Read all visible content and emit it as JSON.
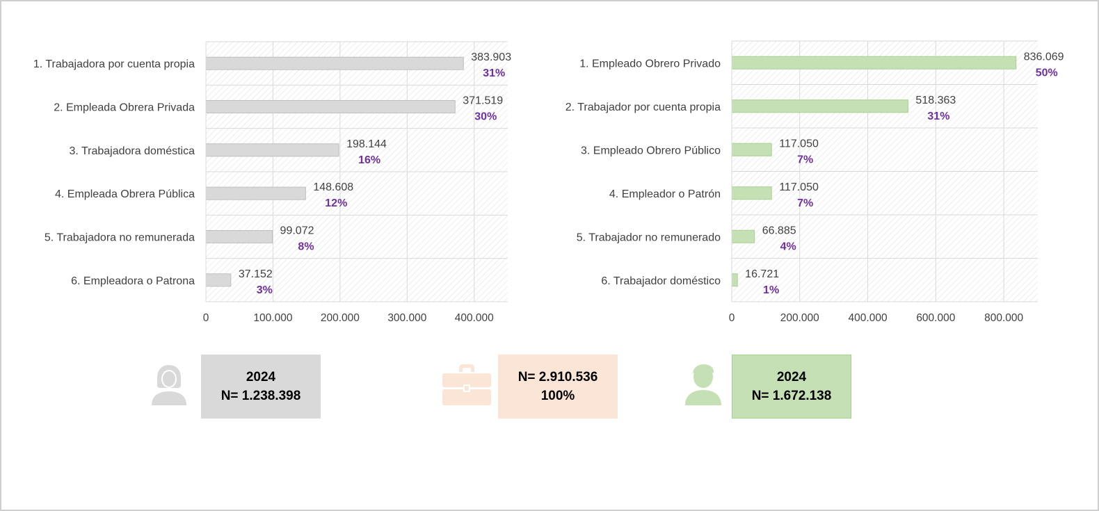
{
  "colors": {
    "female": "#d9d9d9",
    "female_border": "#bfbfbf",
    "male": "#c5e0b4",
    "male_border": "#a9d18e",
    "total": "#fbe5d6",
    "pct": "#7030a0",
    "text": "#404040",
    "grid": "#d9d9d9"
  },
  "chart_data": [
    {
      "type": "bar",
      "orientation": "horizontal",
      "categories": [
        "1. Trabajadora por cuenta propia",
        "2. Empleada Obrera Privada",
        "3. Trabajadora doméstica",
        "4. Empleada Obrera Pública",
        "5. Trabajadora no remunerada",
        "6. Empleadora o Patrona"
      ],
      "values": [
        383903,
        371519,
        198144,
        148608,
        99072,
        37152
      ],
      "value_labels": [
        "383.903",
        "371.519",
        "198.144",
        "148.608",
        "99.072",
        "37.152"
      ],
      "percent_labels": [
        "31%",
        "30%",
        "16%",
        "12%",
        "8%",
        "3%"
      ],
      "xlim": [
        0,
        450000
      ],
      "xticks": [
        0,
        100000,
        200000,
        300000,
        400000
      ],
      "xtick_labels": [
        "0",
        "100.000",
        "200.000",
        "300.000",
        "400.000"
      ],
      "grid": true,
      "color": "#d9d9d9"
    },
    {
      "type": "bar",
      "orientation": "horizontal",
      "categories": [
        "1. Empleado Obrero Privado",
        "2. Trabajador por cuenta propia",
        "3. Empleado Obrero Público",
        "4. Empleador o Patrón",
        "5. Trabajador no remunerado",
        "6. Trabajador doméstico"
      ],
      "values": [
        836069,
        518363,
        117050,
        117050,
        66885,
        16721
      ],
      "value_labels": [
        "836.069",
        "518.363",
        "117.050",
        "117.050",
        "66.885",
        "16.721"
      ],
      "percent_labels": [
        "50%",
        "31%",
        "7%",
        "7%",
        "4%",
        "1%"
      ],
      "xlim": [
        0,
        900000
      ],
      "xticks": [
        0,
        200000,
        400000,
        600000,
        800000
      ],
      "xtick_labels": [
        "0",
        "200.000",
        "400.000",
        "600.000",
        "800.000"
      ],
      "grid": true,
      "color": "#c5e0b4"
    }
  ],
  "summary": {
    "female": {
      "icon": "woman-icon",
      "line1": "2024",
      "line2": "N= 1.238.398"
    },
    "total": {
      "icon": "briefcase-icon",
      "line1": "N= 2.910.536",
      "line2": "100%"
    },
    "male": {
      "icon": "man-icon",
      "line1": "2024",
      "line2": "N= 1.672.138"
    }
  }
}
